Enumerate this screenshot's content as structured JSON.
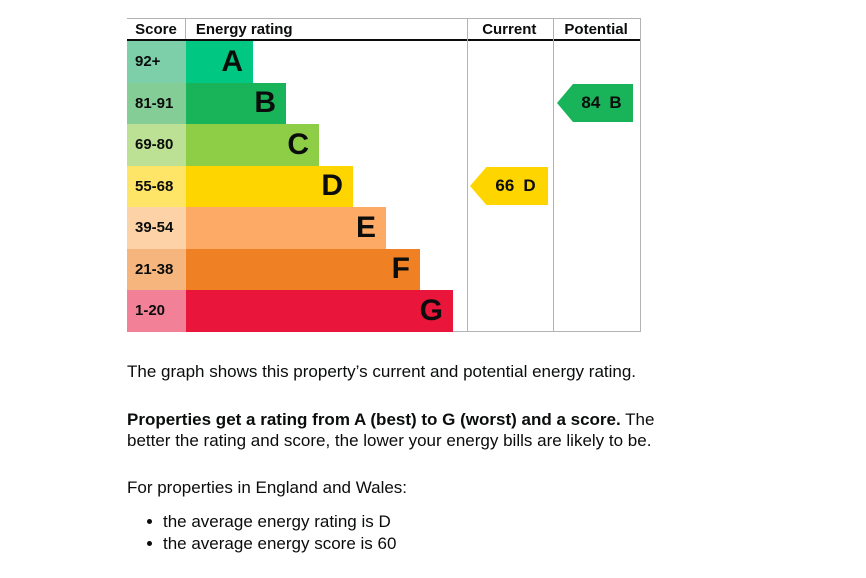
{
  "chart": {
    "headers": {
      "score": "Score",
      "rating": "Energy rating",
      "current": "Current",
      "potential": "Potential"
    },
    "bands": [
      {
        "score": "92+",
        "letter": "A",
        "color": "#00c781",
        "score_bg": "#7ccfa8"
      },
      {
        "score": "81-91",
        "letter": "B",
        "color": "#19b459",
        "score_bg": "#85cd96"
      },
      {
        "score": "69-80",
        "letter": "C",
        "color": "#8dce46",
        "score_bg": "#bce194"
      },
      {
        "score": "55-68",
        "letter": "D",
        "color": "#ffd500",
        "score_bg": "#ffe567"
      },
      {
        "score": "39-54",
        "letter": "E",
        "color": "#fcaa65",
        "score_bg": "#fdd2a7"
      },
      {
        "score": "21-38",
        "letter": "F",
        "color": "#ef8023",
        "score_bg": "#f5b57d"
      },
      {
        "score": "1-20",
        "letter": "G",
        "color": "#e9153b",
        "score_bg": "#f28096"
      }
    ],
    "current": {
      "value": "66",
      "letter": "D",
      "color": "#ffd500"
    },
    "potential": {
      "value": "84",
      "letter": "B",
      "color": "#19b459"
    }
  },
  "chart_data": {
    "type": "bar",
    "title": "Energy rating",
    "categories": [
      "A",
      "B",
      "C",
      "D",
      "E",
      "F",
      "G"
    ],
    "score_ranges": [
      "92+",
      "81-91",
      "69-80",
      "55-68",
      "39-54",
      "21-38",
      "1-20"
    ],
    "bar_lengths_relative": [
      1,
      2,
      3,
      4,
      5,
      6,
      7
    ],
    "bar_colors": [
      "#00c781",
      "#19b459",
      "#8dce46",
      "#ffd500",
      "#fcaa65",
      "#ef8023",
      "#e9153b"
    ],
    "columns": [
      "Score",
      "Energy rating",
      "Current",
      "Potential"
    ],
    "annotations": [
      {
        "label": "current",
        "score": 66,
        "rating": "D",
        "color": "#ffd500",
        "column": "Current"
      },
      {
        "label": "potential",
        "score": 84,
        "rating": "B",
        "color": "#19b459",
        "column": "Potential"
      }
    ],
    "legend_position": "none",
    "grid": false
  },
  "text": {
    "intro": "The graph shows this property’s current and potential energy rating.",
    "rating_lead": "Properties get a rating from A (best) to G (worst) and a score.",
    "rating_rest": " The better the rating and score, the lower your energy bills are likely to be.",
    "region": "For properties in England and Wales:",
    "bullets": [
      "the average energy rating is D",
      "the average energy score is 60"
    ]
  },
  "colors": {
    "text": "#0b0c0c",
    "border": "#b1b4b6"
  }
}
